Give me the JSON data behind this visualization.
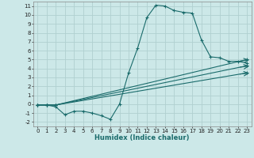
{
  "xlabel": "Humidex (Indice chaleur)",
  "bg_color": "#cce8e8",
  "grid_color": "#b0d0d0",
  "line_color": "#1a6b6b",
  "xlim": [
    -0.5,
    23.5
  ],
  "ylim": [
    -2.5,
    11.5
  ],
  "xticks": [
    0,
    1,
    2,
    3,
    4,
    5,
    6,
    7,
    8,
    9,
    10,
    11,
    12,
    13,
    14,
    15,
    16,
    17,
    18,
    19,
    20,
    21,
    22,
    23
  ],
  "yticks": [
    -2,
    -1,
    0,
    1,
    2,
    3,
    4,
    5,
    6,
    7,
    8,
    9,
    10,
    11
  ],
  "line1_x": [
    0,
    1,
    2,
    3,
    4,
    5,
    6,
    7,
    8,
    9,
    10,
    11,
    12,
    13,
    14,
    15,
    16,
    17,
    18,
    19,
    20,
    21,
    22,
    23
  ],
  "line1_y": [
    -0.1,
    -0.1,
    -0.3,
    -1.2,
    -0.8,
    -0.8,
    -1.0,
    -1.3,
    -1.7,
    0.0,
    3.5,
    6.3,
    9.7,
    11.1,
    11.0,
    10.5,
    10.3,
    10.2,
    7.2,
    5.3,
    5.2,
    4.8,
    4.8,
    4.6
  ],
  "line2_x": [
    0,
    1,
    2,
    23
  ],
  "line2_y": [
    -0.1,
    -0.1,
    -0.1,
    5.0
  ],
  "line3_x": [
    0,
    1,
    2,
    23
  ],
  "line3_y": [
    -0.1,
    -0.1,
    -0.1,
    4.3
  ],
  "line4_x": [
    0,
    1,
    2,
    23
  ],
  "line4_y": [
    -0.1,
    -0.1,
    -0.1,
    3.5
  ],
  "xlabel_fontsize": 6,
  "tick_fontsize": 5
}
